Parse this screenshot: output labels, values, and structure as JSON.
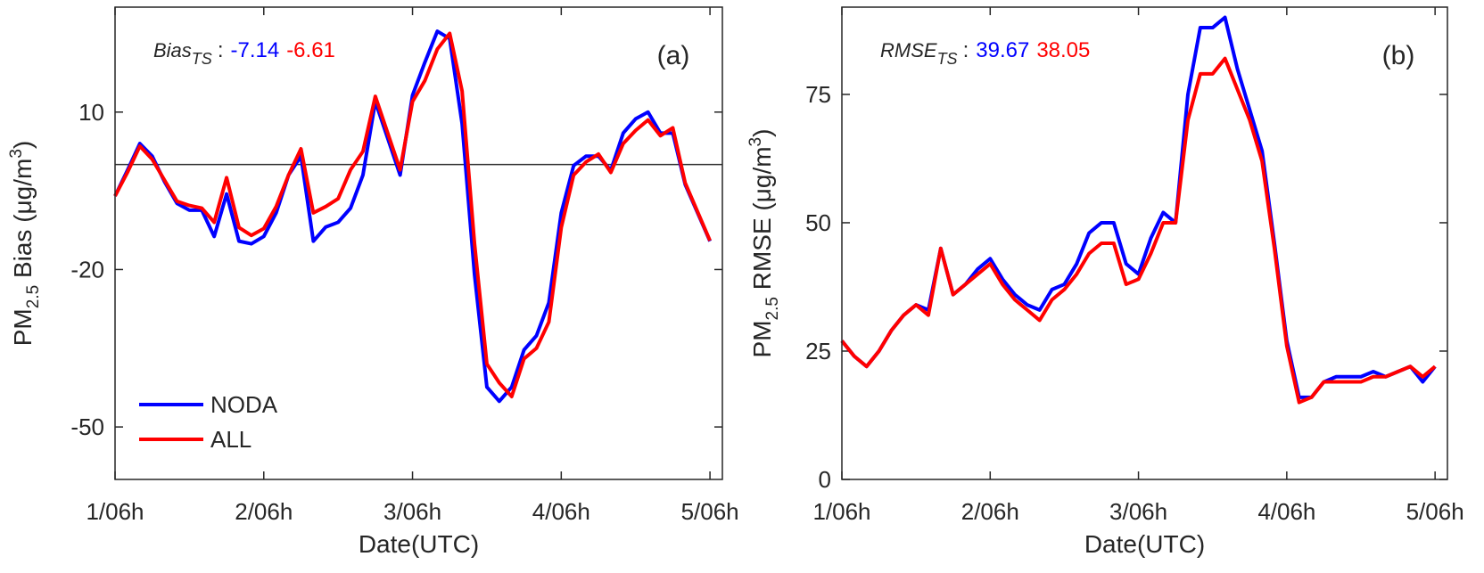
{
  "chart_data": [
    {
      "type": "line",
      "panel_label": "(a)",
      "stats": {
        "label": "Bias",
        "subscript": "TS",
        "separator": ":",
        "values": [
          -7.14,
          -6.61
        ]
      },
      "ylabel": {
        "main": "PM",
        "sub": "2.5",
        "text": " Bias (μg/m",
        "sup": "3",
        "end": ")"
      },
      "xlabel": "Date(UTC)",
      "x": [
        0,
        2,
        4,
        6,
        8,
        10,
        12,
        14,
        16,
        18,
        20,
        22,
        24,
        26,
        28,
        30,
        32,
        34,
        36,
        38,
        40,
        42,
        44,
        46,
        48,
        50,
        52,
        54,
        56,
        58,
        60,
        62,
        64,
        66,
        68,
        70,
        72,
        74,
        76,
        78,
        80,
        82,
        84,
        86,
        88,
        90,
        92,
        94,
        96
      ],
      "xlim": [
        0,
        98
      ],
      "xticks": [
        {
          "value": 0,
          "label": "1/06h"
        },
        {
          "value": 24,
          "label": "2/06h"
        },
        {
          "value": 48,
          "label": "3/06h"
        },
        {
          "value": 72,
          "label": "4/06h"
        },
        {
          "value": 96,
          "label": "5/06h"
        }
      ],
      "ylim": [
        -60,
        30
      ],
      "yticks": [
        -50,
        -20,
        10
      ],
      "hline": 0,
      "legend": "lower left",
      "series": [
        {
          "name": "NODA",
          "color": "#0000ff",
          "values": [
            -6,
            -1.1,
            4,
            1.6,
            -3.3,
            -7.4,
            -8.7,
            -8.7,
            -13.7,
            -5.6,
            -14.6,
            -15.1,
            -13.7,
            -9.2,
            -2,
            1.6,
            -14.6,
            -11.9,
            -11,
            -8.3,
            -2,
            12,
            5,
            -2,
            13.2,
            19.5,
            25.4,
            24,
            7.8,
            -20.9,
            -42.4,
            -45.1,
            -42.4,
            -35.3,
            -32.6,
            -26.3,
            -9.2,
            -0.2,
            1.6,
            1.6,
            -1.1,
            6,
            8.7,
            10,
            6,
            6,
            -3.8,
            -9.2,
            -14.6
          ]
        },
        {
          "name": "ALL",
          "color": "#ff0000",
          "values": [
            -6,
            -1.5,
            3.5,
            1,
            -3,
            -7,
            -7.8,
            -8.3,
            -11,
            -2.5,
            -12,
            -13.5,
            -12.2,
            -8,
            -2,
            3,
            -9.2,
            -8,
            -6.5,
            -1,
            2.5,
            13,
            6,
            -1,
            12,
            16,
            22,
            25,
            14,
            -15,
            -38,
            -41.6,
            -44.2,
            -37,
            -35,
            -30,
            -12,
            -2,
            0.5,
            2,
            -1.5,
            4,
            6.5,
            8.5,
            5.5,
            7,
            -3.5,
            -9,
            -14.5
          ]
        }
      ]
    },
    {
      "type": "line",
      "panel_label": "(b)",
      "stats": {
        "label": "RMSE",
        "subscript": "TS",
        "separator": ":",
        "values": [
          39.67,
          38.05
        ]
      },
      "ylabel": {
        "main": "PM",
        "sub": "2.5",
        "text": " RMSE (μg/m",
        "sup": "3",
        "end": ")"
      },
      "xlabel": "Date(UTC)",
      "x": [
        0,
        2,
        4,
        6,
        8,
        10,
        12,
        14,
        16,
        18,
        20,
        22,
        24,
        26,
        28,
        30,
        32,
        34,
        36,
        38,
        40,
        42,
        44,
        46,
        48,
        50,
        52,
        54,
        56,
        58,
        60,
        62,
        64,
        66,
        68,
        70,
        72,
        74,
        76,
        78,
        80,
        82,
        84,
        86,
        88,
        90,
        92,
        94,
        96
      ],
      "xlim": [
        0,
        98
      ],
      "xticks": [
        {
          "value": 0,
          "label": "1/06h"
        },
        {
          "value": 24,
          "label": "2/06h"
        },
        {
          "value": 48,
          "label": "3/06h"
        },
        {
          "value": 72,
          "label": "4/06h"
        },
        {
          "value": 96,
          "label": "5/06h"
        }
      ],
      "ylim": [
        0,
        92
      ],
      "yticks": [
        0,
        25,
        50,
        75
      ],
      "series": [
        {
          "name": "NODA",
          "color": "#0000ff",
          "values": [
            27,
            24,
            22,
            25,
            29,
            32,
            34,
            33,
            45,
            36,
            38,
            41,
            43,
            39,
            36,
            34,
            33,
            37,
            38,
            42,
            48,
            50,
            50,
            42,
            40,
            47,
            52,
            50,
            75,
            88,
            88,
            90,
            80,
            72,
            64,
            46,
            27,
            16,
            16,
            19,
            20,
            20,
            20,
            21,
            20,
            21,
            22,
            19,
            22
          ]
        },
        {
          "name": "ALL",
          "color": "#ff0000",
          "values": [
            27,
            24,
            22,
            25,
            29,
            32,
            34,
            32,
            45,
            36,
            38,
            40,
            42,
            38,
            35,
            33,
            31,
            35,
            37,
            40,
            44,
            46,
            46,
            38,
            39,
            44,
            50,
            50,
            70,
            79,
            79,
            82,
            76,
            70,
            62,
            45,
            26,
            15,
            16,
            19,
            19,
            19,
            19,
            20,
            20,
            21,
            22,
            20,
            22
          ]
        }
      ]
    }
  ]
}
